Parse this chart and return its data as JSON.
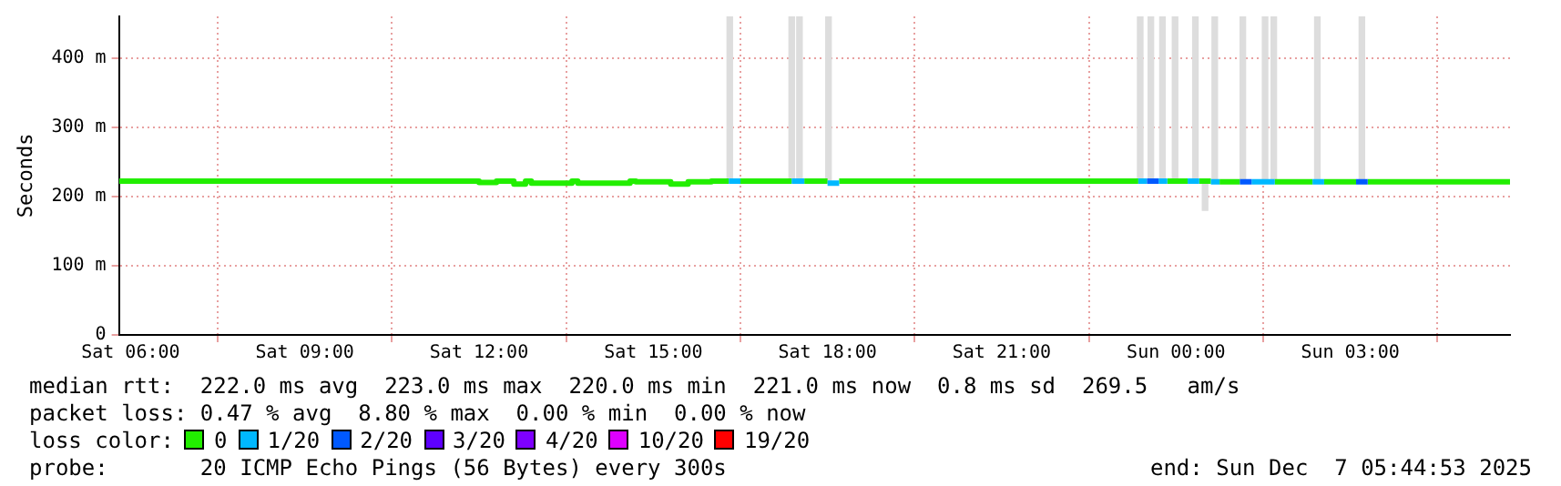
{
  "chart_data": {
    "type": "step",
    "ylabel": "Seconds",
    "xlim": [
      "2025-12-06T05:48",
      "2025-12-07T05:45"
    ],
    "ylim": [
      0,
      460
    ],
    "xticks": [
      {
        "value": "2025-12-06T06:00",
        "label": "Sat 06:00"
      },
      {
        "value": "2025-12-06T09:00",
        "label": "Sat 09:00"
      },
      {
        "value": "2025-12-06T12:00",
        "label": "Sat 12:00"
      },
      {
        "value": "2025-12-06T15:00",
        "label": "Sat 15:00"
      },
      {
        "value": "2025-12-06T18:00",
        "label": "Sat 18:00"
      },
      {
        "value": "2025-12-06T21:00",
        "label": "Sat 21:00"
      },
      {
        "value": "2025-12-07T00:00",
        "label": "Sun 00:00"
      },
      {
        "value": "2025-12-07T03:00",
        "label": "Sun 03:00"
      }
    ],
    "yticks": [
      0,
      {
        "value": 100,
        "label": "100 m"
      },
      {
        "value": 200,
        "label": "200 m"
      },
      {
        "value": 300,
        "label": "300 m"
      },
      {
        "value": 400,
        "label": "400 m"
      }
    ],
    "grid": true,
    "legend": "bottom",
    "legend_title": "loss color:",
    "series": [
      {
        "type": "bar",
        "color": "#dddddd",
        "x": [
          "2025-12-06T16:19",
          "2025-12-06T17:23",
          "2025-12-06T17:31",
          "2025-12-06T18:01",
          "2025-12-06T23:23",
          "2025-12-06T23:34",
          "2025-12-06T23:46",
          "2025-12-06T23:59",
          "2025-12-07T00:20",
          "2025-12-07T00:30",
          "2025-12-07T00:40",
          "2025-12-07T01:09",
          "2025-12-07T01:32",
          "2025-12-07T01:41",
          "2025-12-07T02:26",
          "2025-12-07T03:12"
        ],
        "base": [
          220,
          220,
          220,
          220,
          220,
          220,
          220,
          220,
          220,
          180,
          220,
          220,
          220,
          220,
          220,
          220
        ],
        "values": [
          240,
          240,
          240,
          240,
          240,
          240,
          240,
          240,
          240,
          40,
          240,
          240,
          240,
          240,
          240,
          240
        ]
      },
      {
        "name": "0",
        "color": "#22ee00",
        "x": [
          "2025-12-06T05:48",
          "2025-12-06T08:00",
          "2025-12-06T10:00",
          "2025-12-06T12:00",
          "2025-12-06T12:18",
          "2025-12-06T12:36",
          "2025-12-06T12:48",
          "2025-12-06T12:54",
          "2025-12-06T13:36",
          "2025-12-06T13:42",
          "2025-12-06T14:36",
          "2025-12-06T14:42",
          "2025-12-06T15:18",
          "2025-12-06T15:36",
          "2025-12-06T16:00",
          "2025-12-06T16:18",
          "2025-12-06T16:24",
          "2025-12-06T16:30",
          "2025-12-06T17:23",
          "2025-12-06T17:27",
          "2025-12-06T17:36",
          "2025-12-06T18:00",
          "2025-12-06T18:06",
          "2025-12-06T18:12",
          "2025-12-06T23:21",
          "2025-12-06T23:30",
          "2025-12-06T23:51",
          "2025-12-07T00:12",
          "2025-12-07T00:18",
          "2025-12-07T00:24",
          "2025-12-07T00:36",
          "2025-12-07T00:39",
          "2025-12-07T00:45",
          "2025-12-07T01:06",
          "2025-12-07T01:24",
          "2025-12-07T01:42",
          "2025-12-07T02:21",
          "2025-12-07T02:27",
          "2025-12-07T02:33",
          "2025-12-07T03:06",
          "2025-12-07T03:12",
          "2025-12-07T03:18",
          "2025-12-07T05:45"
        ],
        "values": [
          222,
          222,
          222,
          222,
          220,
          222,
          218,
          222,
          219,
          222,
          219,
          222,
          221,
          218,
          221,
          222,
          null,
          222,
          222,
          null,
          222,
          222,
          null,
          222,
          222,
          null,
          222,
          222,
          null,
          222,
          222,
          null,
          221,
          221,
          null,
          221,
          221,
          null,
          221,
          221,
          null,
          221,
          221
        ]
      },
      {
        "name": "1/20",
        "color": "#00b8ff",
        "x": [
          "2025-12-06T16:18",
          "2025-12-06T16:30",
          "2025-12-06T16:36",
          "2025-12-06T17:23",
          "2025-12-06T17:36",
          "2025-12-06T17:42",
          "2025-12-06T18:00",
          "2025-12-06T18:12",
          "2025-12-06T18:15",
          "2025-12-06T23:21",
          "2025-12-06T23:30",
          "2025-12-06T23:33",
          "2025-12-06T23:42",
          "2025-12-06T23:51",
          "2025-12-06T23:54",
          "2025-12-07T00:12",
          "2025-12-07T00:24",
          "2025-12-07T00:27",
          "2025-12-07T00:36",
          "2025-12-07T00:45",
          "2025-12-07T00:48",
          "2025-12-07T01:18",
          "2025-12-07T01:42",
          "2025-12-07T01:48",
          "2025-12-07T02:21",
          "2025-12-07T02:33"
        ],
        "values": [
          222,
          222,
          null,
          222,
          222,
          null,
          219,
          219,
          null,
          222,
          222,
          null,
          222,
          222,
          null,
          222,
          222,
          null,
          221,
          221,
          null,
          221,
          221,
          null,
          221,
          221
        ]
      },
      {
        "name": "2/20",
        "color": "#0059ff",
        "x": [
          "2025-12-06T23:30",
          "2025-12-06T23:42",
          "2025-12-06T23:45",
          "2025-12-07T01:06",
          "2025-12-07T01:18",
          "2025-12-07T01:21",
          "2025-12-07T03:06",
          "2025-12-07T03:18"
        ],
        "values": [
          222,
          222,
          null,
          221,
          221,
          null,
          221,
          221
        ]
      },
      {
        "name": "3/20",
        "color": "#5e00ff"
      },
      {
        "name": "4/20",
        "color": "#7e00ff"
      },
      {
        "name": "10/20",
        "color": "#dd00ff"
      },
      {
        "name": "19/20",
        "color": "#ff0000"
      }
    ],
    "annotations": [
      "median rtt:  222.0 ms avg  223.0 ms max  220.0 ms min  221.0 ms now  0.8 ms sd  269.5   am/s",
      "packet loss: 0.47 % avg  8.80 % max  0.00 % min  0.00 % now",
      "probe:       20 ICMP Echo Pings (56 Bytes) every 300s",
      "end: Sun Dec  7 05:44:53 2025"
    ]
  }
}
